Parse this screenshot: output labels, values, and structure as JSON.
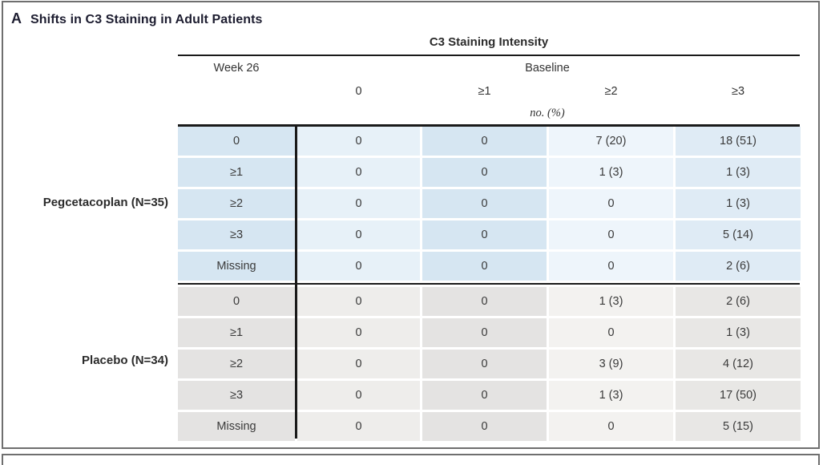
{
  "panel": {
    "label": "A",
    "title": "Shifts in C3 Staining in Adult Patients"
  },
  "table": {
    "title": "C3 Staining Intensity",
    "row_axis_header": "Week 26",
    "col_axis_header": "Baseline",
    "column_headers": [
      "0",
      "≥1",
      "≥2",
      "≥3"
    ],
    "unit_note": "no. (%)",
    "groups": [
      {
        "name": "Pegcetacoplan (N=35)",
        "theme": "blue",
        "rows": [
          {
            "label": "0",
            "cells": [
              "0",
              "0",
              "7 (20)",
              "18 (51)"
            ]
          },
          {
            "label": "≥1",
            "cells": [
              "0",
              "0",
              "1 (3)",
              "1 (3)"
            ]
          },
          {
            "label": "≥2",
            "cells": [
              "0",
              "0",
              "0",
              "1 (3)"
            ]
          },
          {
            "label": "≥3",
            "cells": [
              "0",
              "0",
              "0",
              "5 (14)"
            ]
          },
          {
            "label": "Missing",
            "cells": [
              "0",
              "0",
              "0",
              "2 (6)"
            ]
          }
        ]
      },
      {
        "name": "Placebo (N=34)",
        "theme": "gray",
        "rows": [
          {
            "label": "0",
            "cells": [
              "0",
              "0",
              "1 (3)",
              "2 (6)"
            ]
          },
          {
            "label": "≥1",
            "cells": [
              "0",
              "0",
              "0",
              "1 (3)"
            ]
          },
          {
            "label": "≥2",
            "cells": [
              "0",
              "0",
              "3 (9)",
              "4 (12)"
            ]
          },
          {
            "label": "≥3",
            "cells": [
              "0",
              "0",
              "1 (3)",
              "17 (50)"
            ]
          },
          {
            "label": "Missing",
            "cells": [
              "0",
              "0",
              "0",
              "5 (15)"
            ]
          }
        ]
      }
    ]
  },
  "colors": {
    "frame": "#6f6f6f",
    "rule": "#1a1a1a",
    "title_text": "#1d1d30",
    "blue": {
      "dark": "#d6e6f2",
      "light": "#e7f1f8",
      "lightest": "#eef5fb",
      "mid": "#dfebf5"
    },
    "gray": {
      "dark": "#e4e3e2",
      "light": "#eeedeb",
      "lightest": "#f3f2f0",
      "mid": "#e8e7e5"
    }
  }
}
